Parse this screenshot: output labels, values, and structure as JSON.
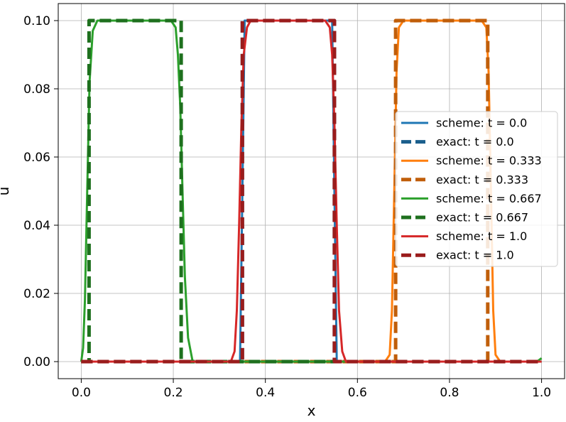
{
  "chart_data": {
    "type": "line",
    "title": "",
    "xlabel": "x",
    "ylabel": "u",
    "xlim": [
      -0.05,
      1.05
    ],
    "ylim": [
      -0.005,
      0.105
    ],
    "xticks": [
      0.0,
      0.2,
      0.4,
      0.6,
      0.8,
      1.0
    ],
    "xtick_labels": [
      "0.0",
      "0.2",
      "0.4",
      "0.6",
      "0.8",
      "1.0"
    ],
    "yticks": [
      0.0,
      0.02,
      0.04,
      0.06,
      0.08,
      0.1
    ],
    "ytick_labels": [
      "0.00",
      "0.02",
      "0.04",
      "0.06",
      "0.08",
      "0.10"
    ],
    "grid": true,
    "legend_position": "center-right",
    "series": [
      {
        "name": "scheme: t = 0.0",
        "style": "solid",
        "color": "#1f77b4",
        "x": [
          0.0,
          0.345,
          0.35,
          0.355,
          0.545,
          0.55,
          0.555,
          1.0
        ],
        "y": [
          0.0,
          0.0,
          0.05,
          0.1,
          0.1,
          0.05,
          0.0,
          0.0
        ]
      },
      {
        "name": "exact:     t = 0.0",
        "style": "dashed",
        "color": "#1a5e8c",
        "x": [
          0.0,
          0.35,
          0.35,
          0.55,
          0.55,
          1.0
        ],
        "y": [
          0.0,
          0.0,
          0.1,
          0.1,
          0.0,
          0.0
        ]
      },
      {
        "name": "scheme: t = 0.333",
        "style": "solid",
        "color": "#ff7f0e",
        "x": [
          0.0,
          0.66,
          0.67,
          0.675,
          0.68,
          0.685,
          0.69,
          0.7,
          0.87,
          0.88,
          0.885,
          0.89,
          0.895,
          0.9,
          0.91,
          1.0
        ],
        "y": [
          0.0,
          0.0,
          0.002,
          0.015,
          0.05,
          0.085,
          0.098,
          0.1,
          0.1,
          0.098,
          0.085,
          0.05,
          0.015,
          0.002,
          0.0,
          0.0
        ]
      },
      {
        "name": "exact:     t = 0.333",
        "style": "dashed",
        "color": "#c05e0a",
        "x": [
          0.0,
          0.683,
          0.683,
          0.883,
          0.883,
          1.0
        ],
        "y": [
          0.0,
          0.0,
          0.1,
          0.1,
          0.0,
          0.0
        ]
      },
      {
        "name": "scheme: t = 0.667",
        "style": "solid",
        "color": "#2ca02c",
        "x": [
          0.0,
          0.004,
          0.008,
          0.013,
          0.018,
          0.025,
          0.035,
          0.195,
          0.205,
          0.21,
          0.215,
          0.22,
          0.225,
          0.232,
          0.242,
          0.97,
          0.99,
          1.0
        ],
        "y": [
          0.0,
          0.004,
          0.018,
          0.05,
          0.082,
          0.097,
          0.1,
          0.1,
          0.098,
          0.09,
          0.075,
          0.05,
          0.025,
          0.007,
          0.0,
          0.0,
          0.0,
          0.001
        ]
      },
      {
        "name": "exact:     t = 0.667",
        "style": "dashed",
        "color": "#1e701e",
        "x": [
          0.0,
          0.017,
          0.017,
          0.217,
          0.217,
          1.0
        ],
        "y": [
          0.0,
          0.0,
          0.1,
          0.1,
          0.0,
          0.0
        ]
      },
      {
        "name": "scheme: t = 1.0",
        "style": "solid",
        "color": "#d62728",
        "x": [
          0.0,
          0.325,
          0.333,
          0.338,
          0.343,
          0.348,
          0.353,
          0.36,
          0.368,
          0.53,
          0.54,
          0.545,
          0.55,
          0.555,
          0.56,
          0.567,
          0.575,
          1.0
        ],
        "y": [
          0.0,
          0.0,
          0.003,
          0.015,
          0.04,
          0.07,
          0.09,
          0.098,
          0.1,
          0.1,
          0.098,
          0.09,
          0.07,
          0.04,
          0.015,
          0.003,
          0.0,
          0.0
        ]
      },
      {
        "name": "exact:     t = 1.0",
        "style": "dashed",
        "color": "#9a1c1c",
        "x": [
          0.0,
          0.35,
          0.35,
          0.55,
          0.55,
          1.0
        ],
        "y": [
          0.0,
          0.0,
          0.1,
          0.1,
          0.0,
          0.0
        ]
      }
    ]
  }
}
